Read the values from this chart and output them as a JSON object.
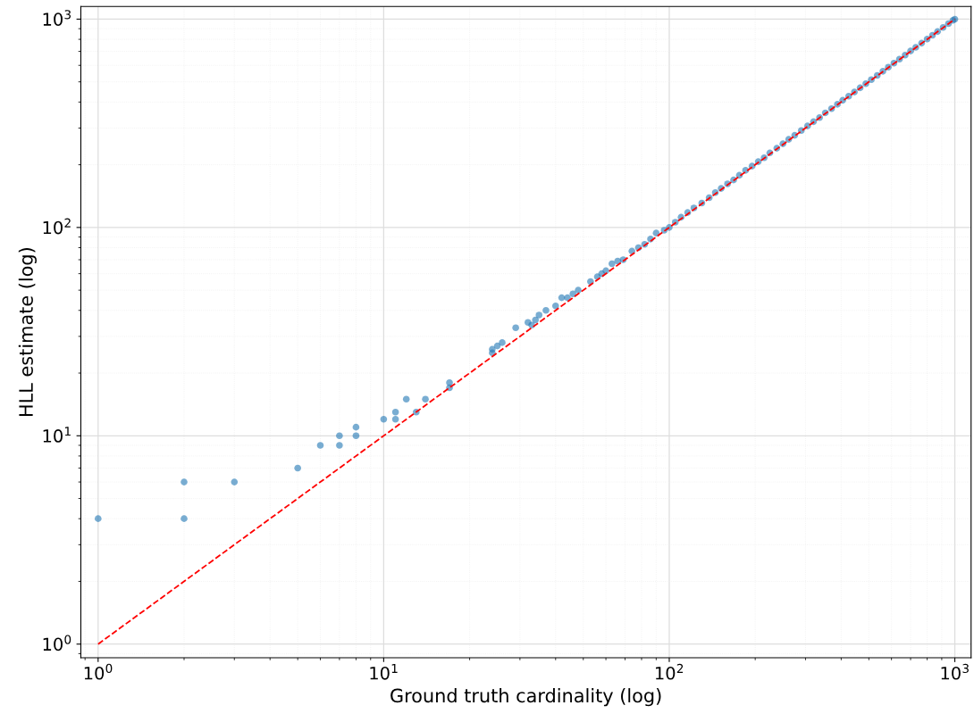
{
  "chart_data": {
    "type": "scatter",
    "xlabel": "Ground truth cardinality (log)",
    "ylabel": "HLL estimate (log)",
    "log": "xy",
    "grid": true,
    "marker": "circle",
    "xlim": [
      0.87,
      1140
    ],
    "ylim": [
      0.86,
      1150
    ],
    "xticks": [
      {
        "value": 1,
        "label": "10$^{0}$"
      },
      {
        "value": 10,
        "label": "10$^{1}$"
      },
      {
        "value": 100,
        "label": "10$^{2}$"
      },
      {
        "value": 1000,
        "label": "10$^{3}$"
      }
    ],
    "yticks": [
      {
        "value": 1,
        "label": "10$^{0}$"
      },
      {
        "value": 10,
        "label": "10$^{1}$"
      },
      {
        "value": 100,
        "label": "10$^{2}$"
      },
      {
        "value": 1000,
        "label": "10$^{3}$"
      }
    ],
    "series": [
      {
        "color": "#1f77b4",
        "x": [
          1,
          2,
          2,
          3,
          5,
          6,
          7,
          7,
          8,
          8,
          10,
          11,
          11,
          12,
          13,
          14,
          17,
          17,
          24,
          24,
          25,
          26,
          29,
          32,
          33,
          34,
          35,
          37,
          40,
          42,
          44,
          46,
          48,
          53,
          56,
          58,
          60,
          63,
          66,
          69,
          74,
          78,
          82,
          86,
          90,
          96,
          100,
          105,
          110,
          116,
          122,
          130,
          138,
          145,
          152,
          160,
          168,
          176,
          185,
          195,
          205,
          215,
          225,
          238,
          250,
          262,
          275,
          290,
          305,
          320,
          336,
          352,
          370,
          388,
          405,
          425,
          445,
          466,
          488,
          510,
          535,
          560,
          585,
          612,
          640,
          670,
          700,
          730,
          765,
          800,
          835,
          870,
          910,
          950,
          985,
          1000
        ],
        "values": [
          4,
          4,
          6,
          6,
          7,
          9,
          9,
          10,
          10,
          11,
          12,
          12,
          13,
          15,
          13,
          15,
          17,
          18,
          25,
          26,
          27,
          28,
          33,
          35,
          34,
          36,
          38,
          40,
          42,
          46,
          46,
          48,
          50,
          55,
          58,
          60,
          62,
          67,
          69,
          70,
          77,
          80,
          83,
          88,
          94,
          97,
          100,
          106,
          112,
          118,
          124,
          131,
          139,
          147,
          154,
          162,
          169,
          178,
          188,
          197,
          207,
          216,
          228,
          240,
          252,
          265,
          277,
          292,
          307,
          322,
          337,
          355,
          372,
          390,
          408,
          427,
          447,
          468,
          490,
          512,
          537,
          562,
          588,
          615,
          643,
          672,
          703,
          733,
          767,
          802,
          837,
          872,
          912,
          952,
          987,
          1000
        ]
      },
      {
        "type": "line",
        "color": "#ff0000",
        "line_style": "dashed",
        "marker": "none",
        "x": [
          1,
          1000
        ],
        "values": [
          1,
          1000
        ]
      }
    ]
  }
}
